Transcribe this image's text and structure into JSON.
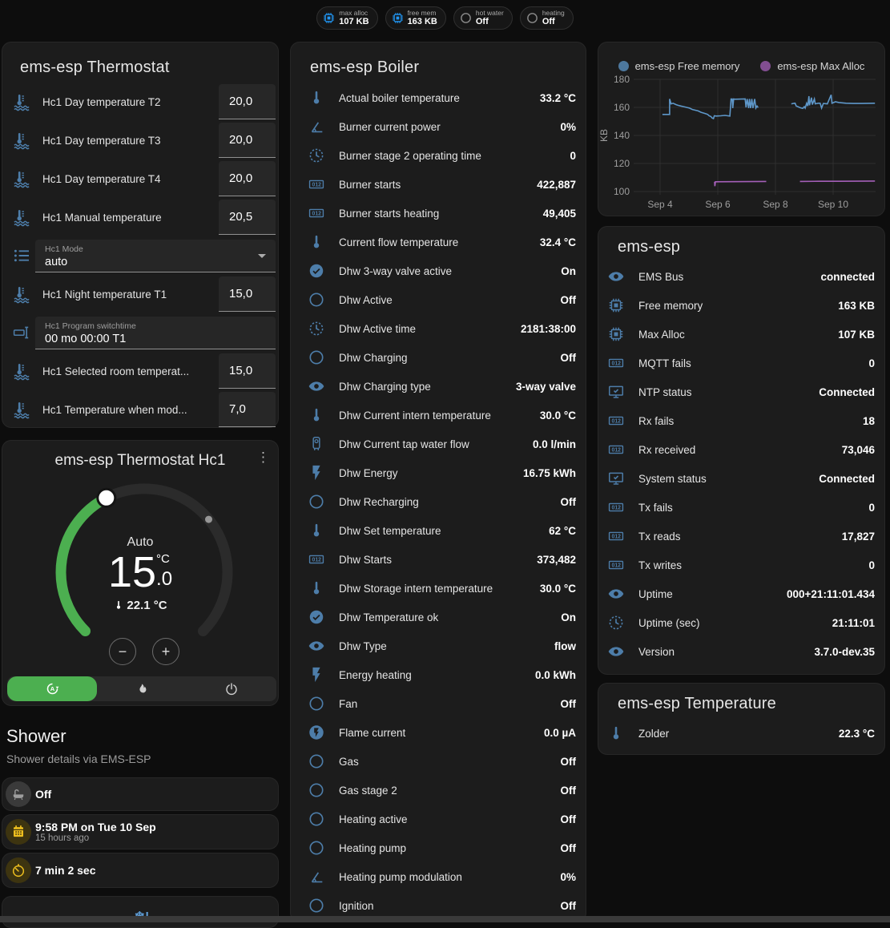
{
  "chips": [
    {
      "icon": "chip",
      "label": "max alloc",
      "value": "107 KB"
    },
    {
      "icon": "chip",
      "label": "free mem",
      "value": "163 KB"
    },
    {
      "icon": "circle",
      "label": "hot water",
      "value": "Off"
    },
    {
      "icon": "circle",
      "label": "heating",
      "value": "Off"
    }
  ],
  "thermostat_card": {
    "title": "ems-esp Thermostat",
    "rows": [
      {
        "icon": "coolant-temperature",
        "label": "Hc1 Day temperature T2",
        "type": "number",
        "value": "20,0"
      },
      {
        "icon": "coolant-temperature",
        "label": "Hc1 Day temperature T3",
        "type": "number",
        "value": "20,0"
      },
      {
        "icon": "coolant-temperature",
        "label": "Hc1 Day temperature T4",
        "type": "number",
        "value": "20,0"
      },
      {
        "icon": "coolant-temperature",
        "label": "Hc1 Manual temperature",
        "type": "number",
        "value": "20,5"
      },
      {
        "icon": "list",
        "type": "select",
        "label": "Hc1 Mode",
        "value": "auto"
      },
      {
        "icon": "coolant-temperature",
        "label": "Hc1 Night temperature T1",
        "type": "number",
        "value": "15,0"
      },
      {
        "icon": "form-textbox",
        "type": "text",
        "label": "Hc1 Program switchtime",
        "value": "00 mo 00:00 T1"
      },
      {
        "icon": "coolant-temperature",
        "label": "Hc1 Selected room temperat...",
        "type": "number",
        "value": "15,0"
      },
      {
        "icon": "coolant-temperature",
        "label": "Hc1 Temperature when mod...",
        "type": "number",
        "value": "7,0"
      }
    ]
  },
  "hc1_card": {
    "title": "ems-esp Thermostat Hc1",
    "mode": "Auto",
    "target_int": "15",
    "target_unit": "°C",
    "target_dec": ".0",
    "current": "22.1 °C",
    "modes": [
      "auto",
      "heat",
      "off"
    ],
    "active_mode": "auto"
  },
  "shower": {
    "title": "Shower",
    "subtitle": "Shower details via EMS-ESP",
    "items": [
      {
        "icon": "bathtub",
        "style": "gray",
        "primary": "Off"
      },
      {
        "icon": "calendar",
        "style": "amber",
        "primary": "9:58 PM on Tue 10 Sep",
        "secondary": "15 hours ago"
      },
      {
        "icon": "timer",
        "style": "amber",
        "primary": "7 min 2 sec"
      },
      {
        "icon": "snowflake-alert",
        "style": "plain",
        "primary": ""
      }
    ]
  },
  "boiler_card": {
    "title": "ems-esp Boiler",
    "rows": [
      {
        "icon": "thermometer",
        "label": "Actual boiler temperature",
        "value": "33.2 °C"
      },
      {
        "icon": "angle-acute",
        "label": "Burner current power",
        "value": "0%"
      },
      {
        "icon": "progress-clock",
        "label": "Burner stage 2 operating time",
        "value": "0"
      },
      {
        "icon": "counter",
        "label": "Burner starts",
        "value": "422,887"
      },
      {
        "icon": "counter",
        "label": "Burner starts heating",
        "value": "49,405"
      },
      {
        "icon": "thermometer",
        "label": "Current flow temperature",
        "value": "32.4 °C"
      },
      {
        "icon": "check-circle",
        "label": "Dhw 3-way valve active",
        "value": "On"
      },
      {
        "icon": "circle",
        "label": "Dhw Active",
        "value": "Off"
      },
      {
        "icon": "progress-clock",
        "label": "Dhw Active time",
        "value": "2181:38:00"
      },
      {
        "icon": "circle",
        "label": "Dhw Charging",
        "value": "Off"
      },
      {
        "icon": "eye",
        "label": "Dhw Charging type",
        "value": "3-way valve"
      },
      {
        "icon": "thermometer",
        "label": "Dhw Current intern temperature",
        "value": "30.0 °C"
      },
      {
        "icon": "water-boiler",
        "label": "Dhw Current tap water flow",
        "value": "0.0 l/min"
      },
      {
        "icon": "flash",
        "label": "Dhw Energy",
        "value": "16.75 kWh"
      },
      {
        "icon": "circle",
        "label": "Dhw Recharging",
        "value": "Off"
      },
      {
        "icon": "thermometer",
        "label": "Dhw Set temperature",
        "value": "62 °C"
      },
      {
        "icon": "counter",
        "label": "Dhw Starts",
        "value": "373,482"
      },
      {
        "icon": "thermometer",
        "label": "Dhw Storage intern temperature",
        "value": "30.0 °C"
      },
      {
        "icon": "check-circle",
        "label": "Dhw Temperature ok",
        "value": "On"
      },
      {
        "icon": "eye",
        "label": "Dhw Type",
        "value": "flow"
      },
      {
        "icon": "flash",
        "label": "Energy heating",
        "value": "0.0 kWh"
      },
      {
        "icon": "circle",
        "label": "Fan",
        "value": "Off"
      },
      {
        "icon": "flash-circle",
        "label": "Flame current",
        "value": "0.0 µA"
      },
      {
        "icon": "circle",
        "label": "Gas",
        "value": "Off"
      },
      {
        "icon": "circle",
        "label": "Gas stage 2",
        "value": "Off"
      },
      {
        "icon": "circle",
        "label": "Heating active",
        "value": "Off"
      },
      {
        "icon": "circle",
        "label": "Heating pump",
        "value": "Off"
      },
      {
        "icon": "angle-acute",
        "label": "Heating pump modulation",
        "value": "0%"
      },
      {
        "icon": "circle",
        "label": "Ignition",
        "value": "Off"
      }
    ]
  },
  "chart_data": {
    "type": "line",
    "ylabel": "KB",
    "x_ticks": [
      {
        "v": 4,
        "label": "Sep 4"
      },
      {
        "v": 6,
        "label": "Sep 6"
      },
      {
        "v": 8,
        "label": "Sep 8"
      },
      {
        "v": 10,
        "label": "Sep 10"
      }
    ],
    "y_ticks": [
      100,
      120,
      140,
      160,
      180
    ],
    "ylim": [
      100,
      180
    ],
    "legend_position": "top",
    "grid": true,
    "series": [
      {
        "name": "ems-esp Free memory",
        "color": "#5e97c9",
        "segments": [
          [
            [
              4.08,
              155
            ],
            [
              4.33,
              155
            ],
            [
              4.33,
              166
            ],
            [
              4.38,
              162.5
            ],
            [
              4.45,
              163
            ],
            [
              4.55,
              162
            ],
            [
              4.62,
              161.5
            ],
            [
              4.72,
              161
            ],
            [
              4.82,
              160.5
            ],
            [
              4.92,
              160
            ],
            [
              5.02,
              159.5
            ],
            [
              5.12,
              158.5
            ],
            [
              5.22,
              158
            ],
            [
              5.32,
              157.5
            ],
            [
              5.42,
              156.5
            ],
            [
              5.5,
              156
            ],
            [
              5.58,
              155.5
            ],
            [
              5.65,
              155
            ],
            [
              5.7,
              154
            ],
            [
              5.76,
              153.5
            ],
            [
              5.8,
              152.5
            ],
            [
              5.85,
              152
            ],
            [
              5.88,
              154
            ],
            [
              5.95,
              153.8
            ],
            [
              6.1,
              154
            ],
            [
              6.25,
              154.3
            ],
            [
              6.35,
              154
            ],
            [
              6.42,
              153.8
            ],
            [
              6.46,
              166
            ],
            [
              6.5,
              166
            ],
            [
              6.52,
              159.5
            ],
            [
              6.55,
              166
            ],
            [
              6.6,
              165.8
            ],
            [
              6.95,
              166
            ],
            [
              6.98,
              160
            ],
            [
              7.02,
              166
            ],
            [
              7.07,
              159.5
            ],
            [
              7.1,
              166
            ],
            [
              7.14,
              159.5
            ],
            [
              7.18,
              166
            ],
            [
              7.22,
              159.5
            ],
            [
              7.28,
              166
            ],
            [
              7.32,
              159.5
            ],
            [
              7.36,
              161
            ],
            [
              7.4,
              159.8
            ]
          ],
          [
            [
              8.55,
              162.5
            ],
            [
              8.62,
              162.8
            ],
            [
              8.68,
              163
            ],
            [
              8.72,
              161
            ],
            [
              8.78,
              160.5
            ],
            [
              8.83,
              160
            ],
            [
              8.9,
              159.5
            ],
            [
              8.95,
              159.3
            ],
            [
              9.0,
              160.5
            ],
            [
              9.03,
              159.5
            ],
            [
              9.08,
              163
            ],
            [
              9.12,
              161
            ],
            [
              9.16,
              168
            ],
            [
              9.18,
              161.5
            ],
            [
              9.25,
              167
            ],
            [
              9.28,
              162
            ],
            [
              9.35,
              166
            ],
            [
              9.38,
              162.5
            ],
            [
              9.48,
              163
            ],
            [
              9.55,
              163
            ],
            [
              9.6,
              159.5
            ],
            [
              9.66,
              162.8
            ],
            [
              9.8,
              162.5
            ],
            [
              9.93,
              169
            ],
            [
              9.96,
              163
            ],
            [
              10.08,
              164
            ],
            [
              10.2,
              163.5
            ],
            [
              10.45,
              163
            ],
            [
              10.7,
              162.8
            ],
            [
              11.0,
              162.8
            ],
            [
              11.45,
              163
            ]
          ]
        ]
      },
      {
        "name": "ems-esp Max Alloc",
        "color": "#a45fb8",
        "segments": [
          [
            [
              5.89,
              107
            ],
            [
              5.9,
              103.8
            ],
            [
              5.92,
              107
            ],
            [
              7.68,
              107.2
            ]
          ],
          [
            [
              8.85,
              107.2
            ],
            [
              9.5,
              107.3
            ],
            [
              10.2,
              107.3
            ],
            [
              11.45,
              107.5
            ]
          ]
        ]
      }
    ]
  },
  "emsesp_card": {
    "title": "ems-esp",
    "rows": [
      {
        "icon": "eye",
        "label": "EMS Bus",
        "value": "connected"
      },
      {
        "icon": "chip",
        "label": "Free memory",
        "value": "163 KB"
      },
      {
        "icon": "chip",
        "label": "Max Alloc",
        "value": "107 KB"
      },
      {
        "icon": "counter",
        "label": "MQTT fails",
        "value": "0"
      },
      {
        "icon": "monitor-check",
        "label": "NTP status",
        "value": "Connected"
      },
      {
        "icon": "counter",
        "label": "Rx fails",
        "value": "18"
      },
      {
        "icon": "counter",
        "label": "Rx received",
        "value": "73,046"
      },
      {
        "icon": "monitor-check",
        "label": "System status",
        "value": "Connected"
      },
      {
        "icon": "counter",
        "label": "Tx fails",
        "value": "0"
      },
      {
        "icon": "counter",
        "label": "Tx reads",
        "value": "17,827"
      },
      {
        "icon": "counter",
        "label": "Tx writes",
        "value": "0"
      },
      {
        "icon": "eye",
        "label": "Uptime",
        "value": "000+21:11:01.434"
      },
      {
        "icon": "progress-clock",
        "label": "Uptime (sec)",
        "value": "21:11:01"
      },
      {
        "icon": "eye",
        "label": "Version",
        "value": "3.7.0-dev.35"
      }
    ]
  },
  "temperature_card": {
    "title": "ems-esp Temperature",
    "rows": [
      {
        "icon": "thermometer",
        "label": "Zolder",
        "value": "22.3 °C"
      }
    ]
  },
  "colors": {
    "icon_blue": "#4d7da9",
    "chip_icon_blue": "#2196f3",
    "amber": "#edbe1e",
    "green": "#4caf50",
    "gray_icon": "#9e9e9e"
  }
}
